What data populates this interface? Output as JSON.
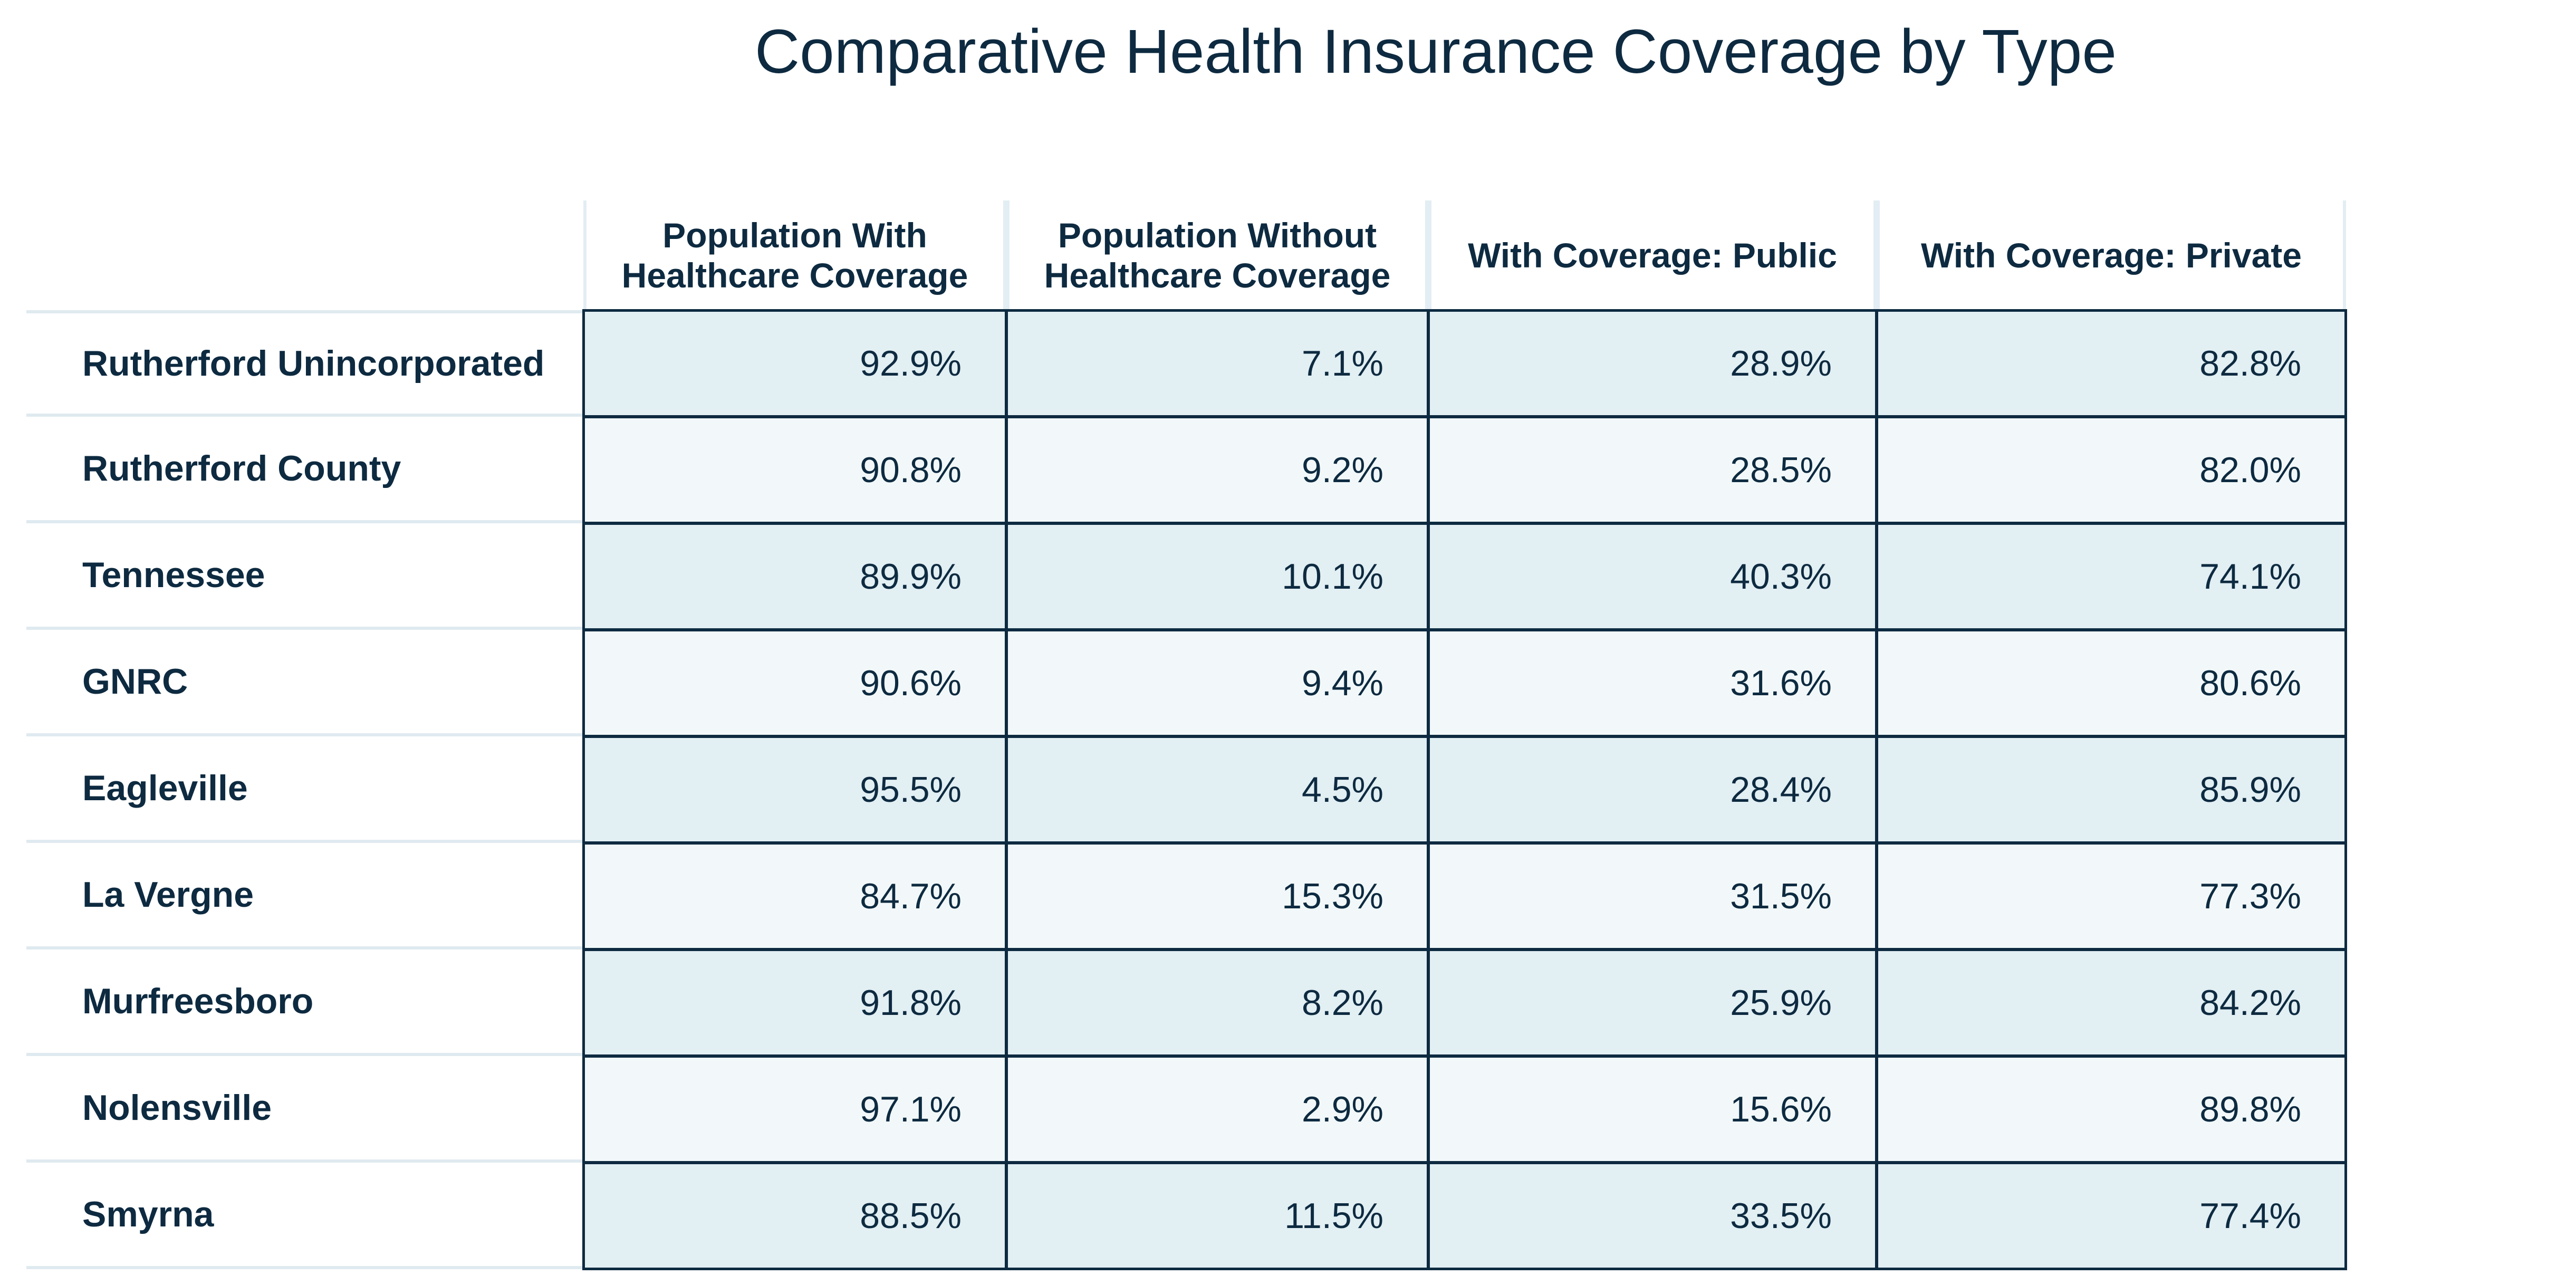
{
  "chart_data": {
    "type": "table",
    "title": "Comparative Health Insurance Coverage by Type",
    "columns": [
      "Population With Healthcare Coverage",
      "Population Without Healthcare Coverage",
      "With Coverage: Public",
      "With Coverage: Private"
    ],
    "header_lines": [
      [
        "Population With",
        "Healthcare Coverage"
      ],
      [
        "Population Without",
        "Healthcare Coverage"
      ],
      [
        "With Coverage: Public"
      ],
      [
        "With Coverage: Private"
      ]
    ],
    "rows": [
      {
        "label": "Rutherford Unincorporated",
        "values": [
          "92.9%",
          "7.1%",
          "28.9%",
          "82.8%"
        ]
      },
      {
        "label": "Rutherford County",
        "values": [
          "90.8%",
          "9.2%",
          "28.5%",
          "82.0%"
        ]
      },
      {
        "label": "Tennessee",
        "values": [
          "89.9%",
          "10.1%",
          "40.3%",
          "74.1%"
        ]
      },
      {
        "label": "GNRC",
        "values": [
          "90.6%",
          "9.4%",
          "31.6%",
          "80.6%"
        ]
      },
      {
        "label": "Eagleville",
        "values": [
          "95.5%",
          "4.5%",
          "28.4%",
          "85.9%"
        ]
      },
      {
        "label": "La Vergne",
        "values": [
          "84.7%",
          "15.3%",
          "31.5%",
          "77.3%"
        ]
      },
      {
        "label": "Murfreesboro",
        "values": [
          "91.8%",
          "8.2%",
          "25.9%",
          "84.2%"
        ]
      },
      {
        "label": "Nolensville",
        "values": [
          "97.1%",
          "2.9%",
          "15.6%",
          "89.8%"
        ]
      },
      {
        "label": "Smyrna",
        "values": [
          "88.5%",
          "11.5%",
          "33.5%",
          "77.4%"
        ]
      }
    ],
    "colors": {
      "text": "#0d2a40",
      "row_band_dark": "#e2eff3",
      "row_band_light": "#f2f8f9",
      "cell_border": "#0d2a40",
      "header_rule": "#e2eef3"
    }
  }
}
